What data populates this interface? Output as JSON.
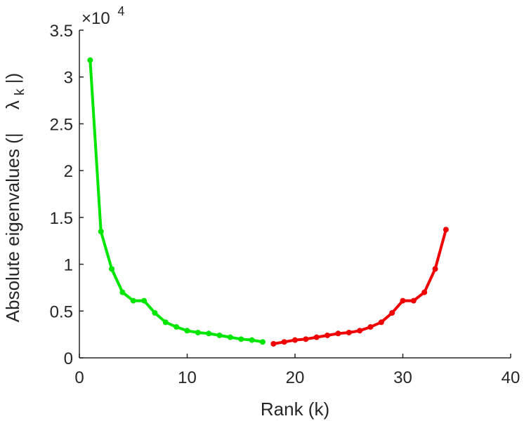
{
  "chart_data": {
    "type": "line",
    "xlabel": "Rank (k)",
    "ylabel_main": "Absolute eigenvalues (|",
    "ylabel_lambda": "λ",
    "ylabel_sub": "k",
    "ylabel_tail": "|)",
    "y_exponent_base": "×10",
    "y_exponent_power": "4",
    "xlim": [
      0,
      40
    ],
    "ylim": [
      0,
      3.5
    ],
    "y_multiplier": 10000,
    "grid": false,
    "x_ticks": [
      {
        "value": 0,
        "label": "0"
      },
      {
        "value": 10,
        "label": "10"
      },
      {
        "value": 20,
        "label": "20"
      },
      {
        "value": 30,
        "label": "30"
      },
      {
        "value": 40,
        "label": "40"
      }
    ],
    "y_ticks": [
      {
        "value": 0,
        "label": "0"
      },
      {
        "value": 0.5,
        "label": "0.5"
      },
      {
        "value": 1,
        "label": "1"
      },
      {
        "value": 1.5,
        "label": "1.5"
      },
      {
        "value": 2,
        "label": "2"
      },
      {
        "value": 2.5,
        "label": "2.5"
      },
      {
        "value": 3,
        "label": "3"
      },
      {
        "value": 3.5,
        "label": "3.5"
      }
    ],
    "series": [
      {
        "color": "#00e600",
        "x": [
          1,
          2,
          3,
          4,
          5,
          6,
          7,
          8,
          9,
          10,
          11,
          12,
          13,
          14,
          15,
          16,
          17
        ],
        "y": [
          3.18,
          1.35,
          0.95,
          0.7,
          0.61,
          0.61,
          0.48,
          0.38,
          0.33,
          0.29,
          0.27,
          0.26,
          0.24,
          0.22,
          0.2,
          0.19,
          0.17
        ]
      },
      {
        "color": "#f00000",
        "x": [
          18,
          19,
          20,
          21,
          22,
          23,
          24,
          25,
          26,
          27,
          28,
          29,
          30,
          31,
          32,
          33,
          34
        ],
        "y": [
          0.15,
          0.17,
          0.19,
          0.2,
          0.22,
          0.24,
          0.26,
          0.27,
          0.29,
          0.33,
          0.38,
          0.48,
          0.61,
          0.61,
          0.7,
          0.95,
          1.37
        ]
      }
    ]
  }
}
